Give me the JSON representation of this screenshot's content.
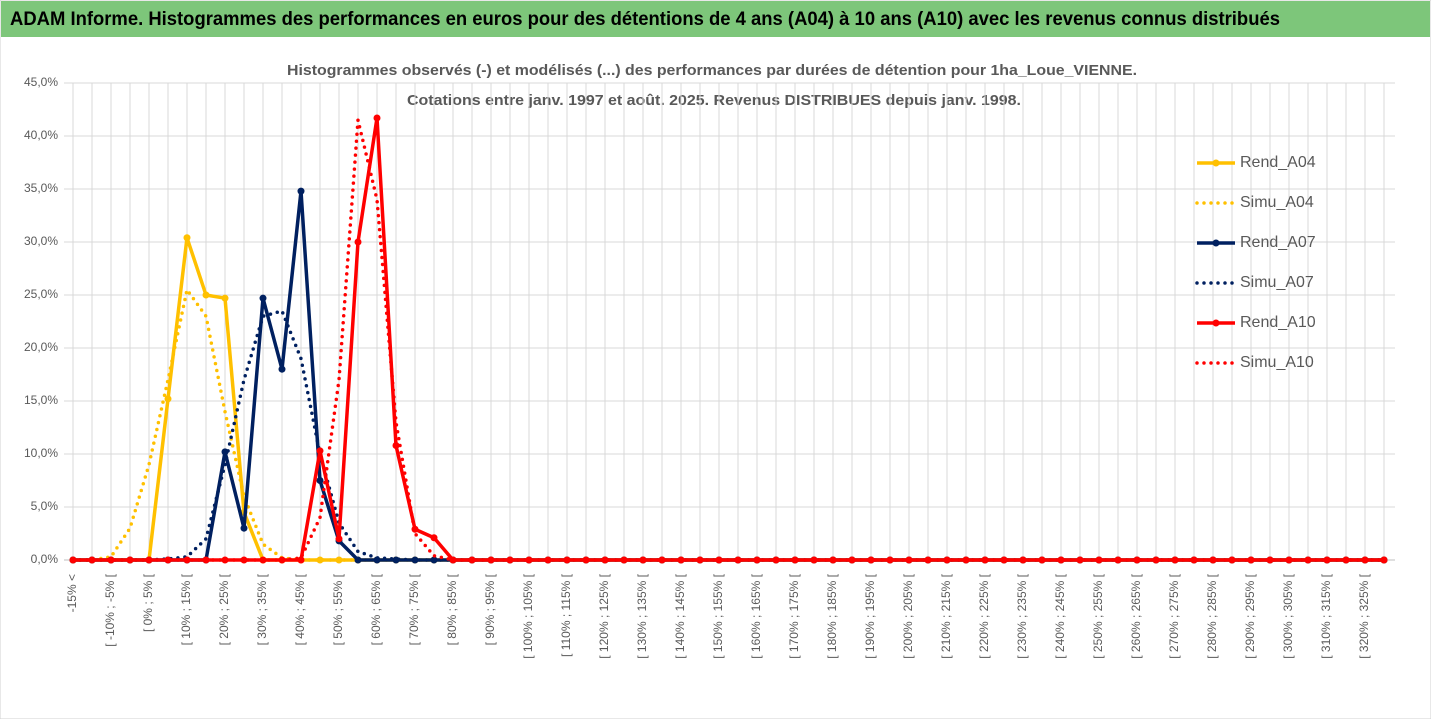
{
  "header": {
    "title": "ADAM Informe. Histogrammes des performances en euros pour des détentions de 4 ans (A04) à 10 ans (A10) avec les revenus connus distribués"
  },
  "chart_data": {
    "type": "line",
    "title": "Histogrammes observés (-) et modélisés (...) des performances par durées de détention pour 1ha_Loue_VIENNE.",
    "subtitle": "Cotations entre janv. 1997 et août. 2025. Revenus DISTRIBUES depuis janv. 1998.",
    "categories": [
      "-15% <",
      null,
      "[ -10% ; -5% [",
      null,
      "[ 0% ; 5% [",
      null,
      "[ 10% ; 15% [",
      null,
      "[ 20% ; 25% [",
      null,
      "[ 30% ; 35% [",
      null,
      "[ 40% ; 45% [",
      null,
      "[ 50% ; 55% [",
      null,
      "[ 60% ; 65% [",
      null,
      "[ 70% ; 75% [",
      null,
      "[ 80% ; 85% [",
      null,
      "[ 90% ; 95% [",
      null,
      "[ 100% ; 105% [",
      null,
      "[ 110% ; 115% [",
      null,
      "[ 120% ; 125% [",
      null,
      "[ 130% ; 135% [",
      null,
      "[ 140% ; 145% [",
      null,
      "[ 150% ; 155% [",
      null,
      "[ 160% ; 165% [",
      null,
      "[ 170% ; 175% [",
      null,
      "[ 180% ; 185% [",
      null,
      "[ 190% ; 195% [",
      null,
      "[ 200% ; 205% [",
      null,
      "[ 210% ; 215% [",
      null,
      "[ 220% ; 225% [",
      null,
      "[ 230% ; 235% [",
      null,
      "[ 240% ; 245% [",
      null,
      "[ 250% ; 255% [",
      null,
      "[ 260% ; 265% [",
      null,
      "[ 270% ; 275% [",
      null,
      "[ 280% ; 285% [",
      null,
      "[ 290% ; 295% [",
      null,
      "[ 300% ; 305% [",
      null,
      "[ 310% ; 315% [",
      null,
      "[ 320% ; 325% [",
      null
    ],
    "series": [
      {
        "name": "Rend_A04",
        "color": "#ffc000",
        "style": "solid",
        "markers": true,
        "values": [
          0,
          0,
          0,
          0,
          0,
          15.2,
          30.4,
          25.0,
          24.7,
          4.5,
          0,
          0,
          0,
          0,
          0,
          0,
          0,
          0,
          0,
          0,
          0,
          0,
          0,
          0,
          0,
          0,
          0,
          0,
          0,
          0,
          0,
          0,
          0,
          0,
          0,
          0,
          0,
          0,
          0,
          0,
          0,
          0,
          0,
          0,
          0,
          0,
          0,
          0,
          0,
          0,
          0,
          0,
          0,
          0,
          0,
          0,
          0,
          0,
          0,
          0,
          0,
          0,
          0,
          0,
          0,
          0,
          0,
          0,
          0,
          0
        ]
      },
      {
        "name": "Simu_A04",
        "color": "#ffc000",
        "style": "dot",
        "markers": false,
        "values": [
          0,
          0,
          0.3,
          3,
          9,
          17,
          25.5,
          23,
          14,
          6,
          1.5,
          0.2,
          0,
          0,
          0,
          0,
          0,
          0,
          0,
          0,
          0,
          0,
          0,
          0,
          0,
          0,
          0,
          0,
          0,
          0,
          0,
          0,
          0,
          0,
          0,
          0,
          0,
          0,
          0,
          0,
          0,
          0,
          0,
          0,
          0,
          0,
          0,
          0,
          0,
          0,
          0,
          0,
          0,
          0,
          0,
          0,
          0,
          0,
          0,
          0,
          0,
          0,
          0,
          0,
          0,
          0,
          0,
          0,
          0,
          0
        ]
      },
      {
        "name": "Rend_A07",
        "color": "#002060",
        "style": "solid",
        "markers": true,
        "values": [
          0,
          0,
          0,
          0,
          0,
          0,
          0,
          0,
          10.2,
          3.0,
          24.7,
          18.0,
          34.8,
          7.5,
          1.8,
          0,
          0,
          0,
          0,
          0,
          0,
          0,
          0,
          0,
          0,
          0,
          0,
          0,
          0,
          0,
          0,
          0,
          0,
          0,
          0,
          0,
          0,
          0,
          0,
          0,
          0,
          0,
          0,
          0,
          0,
          0,
          0,
          0,
          0,
          0,
          0,
          0,
          0,
          0,
          0,
          0,
          0,
          0,
          0,
          0,
          0,
          0,
          0,
          0,
          0,
          0,
          0,
          0,
          0,
          0
        ]
      },
      {
        "name": "Simu_A07",
        "color": "#002060",
        "style": "dot",
        "markers": false,
        "values": [
          0,
          0,
          0,
          0,
          0,
          0.1,
          0.3,
          2,
          9,
          17,
          23,
          23.5,
          19,
          10,
          3.5,
          0.8,
          0.2,
          0.1,
          0,
          0,
          0,
          0,
          0,
          0,
          0,
          0,
          0,
          0,
          0,
          0,
          0,
          0,
          0,
          0,
          0,
          0,
          0,
          0,
          0,
          0,
          0,
          0,
          0,
          0,
          0,
          0,
          0,
          0,
          0,
          0,
          0,
          0,
          0,
          0,
          0,
          0,
          0,
          0,
          0,
          0,
          0,
          0,
          0,
          0,
          0,
          0,
          0,
          0,
          0,
          0
        ]
      },
      {
        "name": "Rend_A10",
        "color": "#ff0000",
        "style": "solid",
        "markers": true,
        "values": [
          0,
          0,
          0,
          0,
          0,
          0,
          0,
          0,
          0,
          0,
          0,
          0,
          0,
          10.3,
          2.0,
          30.0,
          41.7,
          10.8,
          2.9,
          2.1,
          0,
          0,
          0,
          0,
          0,
          0,
          0,
          0,
          0,
          0,
          0,
          0,
          0,
          0,
          0,
          0,
          0,
          0,
          0,
          0,
          0,
          0,
          0,
          0,
          0,
          0,
          0,
          0,
          0,
          0,
          0,
          0,
          0,
          0,
          0,
          0,
          0,
          0,
          0,
          0,
          0,
          0,
          0,
          0,
          0,
          0,
          0,
          0,
          0,
          0
        ]
      },
      {
        "name": "Simu_A10",
        "color": "#ff0000",
        "style": "dot",
        "markers": false,
        "values": [
          0,
          0,
          0,
          0,
          0,
          0,
          0,
          0,
          0,
          0,
          0,
          0,
          0.2,
          4,
          17,
          41.5,
          34,
          13,
          2.5,
          0.4,
          0,
          0,
          0,
          0,
          0,
          0,
          0,
          0,
          0,
          0,
          0,
          0,
          0,
          0,
          0,
          0,
          0,
          0,
          0,
          0,
          0,
          0,
          0,
          0,
          0,
          0,
          0,
          0,
          0,
          0,
          0,
          0,
          0,
          0,
          0,
          0,
          0,
          0,
          0,
          0,
          0,
          0,
          0,
          0,
          0,
          0,
          0,
          0,
          0,
          0
        ]
      }
    ],
    "ylim": [
      0,
      45
    ],
    "yticks": [
      {
        "value": 0,
        "label": "0,0%"
      },
      {
        "value": 5,
        "label": "5,0%"
      },
      {
        "value": 10,
        "label": "10,0%"
      },
      {
        "value": 15,
        "label": "15,0%"
      },
      {
        "value": 20,
        "label": "20,0%"
      },
      {
        "value": 25,
        "label": "25,0%"
      },
      {
        "value": 30,
        "label": "30,0%"
      },
      {
        "value": 35,
        "label": "35,0%"
      },
      {
        "value": 40,
        "label": "40,0%"
      },
      {
        "value": 45,
        "label": "45,0%"
      }
    ],
    "grid": true,
    "legend": "right"
  }
}
